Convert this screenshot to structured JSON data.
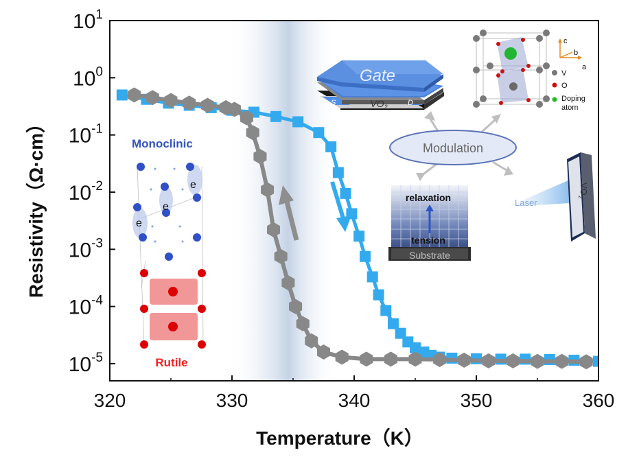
{
  "chart_data": {
    "type": "line",
    "xlabel": "Temperature（K）",
    "ylabel": "Resistivity（Ω·cm）",
    "xlim": [
      320,
      360
    ],
    "ylim_log10": [
      -5.3,
      1
    ],
    "y_scale": "log",
    "x_ticks": [
      "320",
      "330",
      "340",
      "350",
      "360"
    ],
    "x_tick_values": [
      320,
      330,
      340,
      350,
      360
    ],
    "y_ticks": [
      {
        "base": "10",
        "exp": "1",
        "log10": 1
      },
      {
        "base": "10",
        "exp": "0",
        "log10": 0
      },
      {
        "base": "10",
        "exp": "-1",
        "log10": -1
      },
      {
        "base": "10",
        "exp": "-2",
        "log10": -2
      },
      {
        "base": "10",
        "exp": "-3",
        "log10": -3
      },
      {
        "base": "10",
        "exp": "-4",
        "log10": -4
      },
      {
        "base": "10",
        "exp": "-5",
        "log10": -5
      }
    ],
    "series": [
      {
        "marker": "square",
        "color": "#33aaee",
        "x": [
          321.0,
          323.0,
          324.8,
          326.5,
          328.3,
          330.0,
          331.8,
          333.6,
          335.4,
          337.1,
          338.1,
          338.7,
          339.3,
          339.8,
          340.4,
          340.9,
          341.5,
          342.0,
          342.6,
          343.2,
          343.8,
          344.4,
          345.0,
          345.7,
          346.3,
          347.0,
          348.0,
          350.0,
          352.0,
          354.0,
          356.0,
          358.0,
          360.0
        ],
        "y": [
          0.5,
          0.42,
          0.36,
          0.33,
          0.3,
          0.27,
          0.25,
          0.21,
          0.17,
          0.11,
          0.062,
          0.022,
          0.0095,
          0.0042,
          0.0017,
          0.00075,
          0.00033,
          0.00016,
          8.5e-05,
          5e-05,
          3.4e-05,
          2.4e-05,
          1.9e-05,
          1.6e-05,
          1.4e-05,
          1.3e-05,
          1.25e-05,
          1.22e-05,
          1.2e-05,
          1.2e-05,
          1.18e-05,
          1.15e-05,
          1.1e-05
        ]
      },
      {
        "marker": "hexagon",
        "color": "#888888",
        "x": [
          322.0,
          323.5,
          325.0,
          326.5,
          328.0,
          329.5,
          330.2,
          331.2,
          331.7,
          332.3,
          332.9,
          333.4,
          334.0,
          334.6,
          335.2,
          335.8,
          336.5,
          337.5,
          339.0,
          341.0,
          343.0,
          345.0,
          347.0,
          349.0,
          351.0,
          353.0,
          355.0,
          357.0,
          359.0
        ],
        "y": [
          0.5,
          0.45,
          0.4,
          0.36,
          0.33,
          0.3,
          0.28,
          0.2,
          0.11,
          0.042,
          0.011,
          0.0022,
          0.00075,
          0.00026,
          0.0001,
          5e-05,
          2.5e-05,
          1.6e-05,
          1.3e-05,
          1.2e-05,
          1.2e-05,
          1.2e-05,
          1.18e-05,
          1.15e-05,
          1.12e-05,
          1.12e-05,
          1.1e-05,
          1.1e-05,
          1.08e-05
        ]
      }
    ]
  },
  "insets": {
    "gate": {
      "label": "Gate",
      "s": "S",
      "d": "D",
      "channel_base": "VO",
      "channel_sub": "2"
    },
    "modulation": "Modulation",
    "laser": {
      "label": "Laser",
      "sample_base": "VO",
      "sample_sub": "2"
    },
    "substrate_stack": {
      "relaxation": "relaxation",
      "tension": "tension",
      "substrate": "Substrate"
    },
    "crystal": {
      "axis_c": "c",
      "axis_b": "b",
      "axis_a": "a",
      "legend_v": "V",
      "legend_o": "O",
      "legend_doping": "Doping atom",
      "colors": {
        "v": "#666666",
        "o": "#cc1111",
        "doping": "#22bb22"
      }
    },
    "phases": {
      "monoclinic": "Monoclinic",
      "rutile": "Rutile",
      "electron": "e",
      "colors": {
        "monoclinic": "#3355bb",
        "rutile": "#ee2222"
      }
    }
  }
}
